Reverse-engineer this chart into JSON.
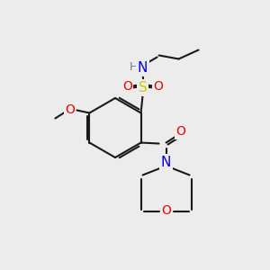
{
  "bg_color": "#ececec",
  "bond_color": "#1a1a1a",
  "bond_lw": 1.5,
  "atom_colors": {
    "N": "#0000ee",
    "O": "#ee0000",
    "S": "#cccc00",
    "H": "#708090",
    "C": "#1a1a1a"
  },
  "font_size": 9,
  "font_size_small": 8
}
